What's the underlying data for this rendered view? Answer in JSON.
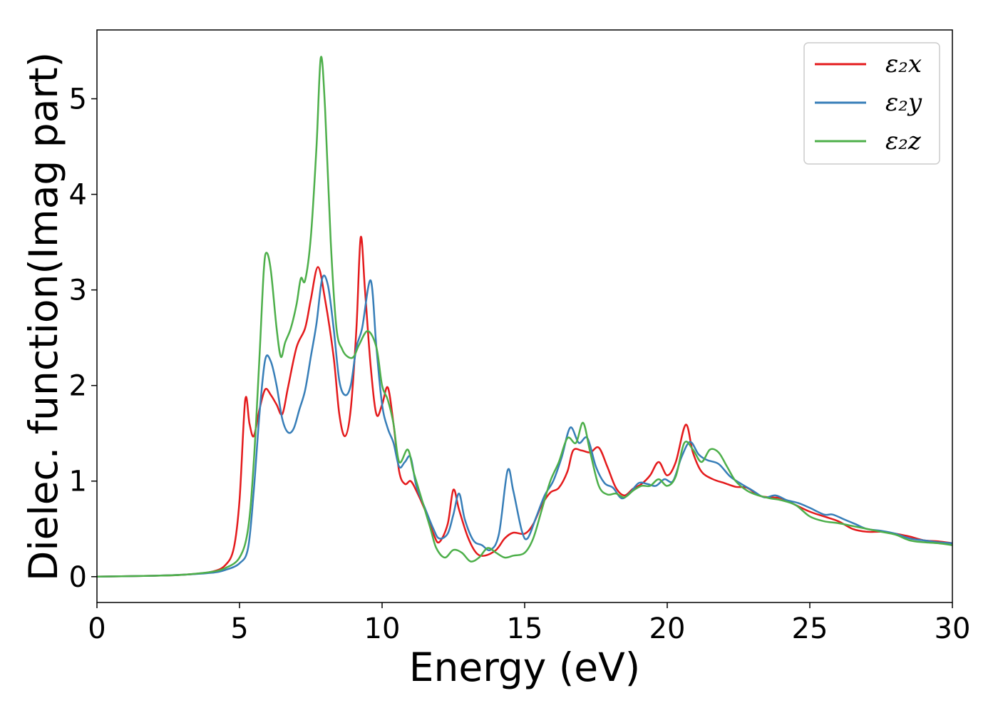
{
  "chart_data": {
    "type": "line",
    "title": "",
    "xlabel": "Energy (eV)",
    "ylabel": "Dielec. function(Imag part)",
    "xlim": [
      0,
      30
    ],
    "ylim": [
      -0.27,
      5.72
    ],
    "xticks": [
      0,
      5,
      10,
      15,
      20,
      25,
      30
    ],
    "yticks": [
      0,
      1,
      2,
      3,
      4,
      5
    ],
    "grid": false,
    "legend_position": "top-right",
    "series": [
      {
        "name": "ε₂x",
        "color": "#e41a1c",
        "points": [
          [
            0,
            0.0
          ],
          [
            2,
            0.01
          ],
          [
            3,
            0.02
          ],
          [
            4,
            0.05
          ],
          [
            4.5,
            0.12
          ],
          [
            4.8,
            0.3
          ],
          [
            5.0,
            0.8
          ],
          [
            5.2,
            1.85
          ],
          [
            5.35,
            1.6
          ],
          [
            5.5,
            1.47
          ],
          [
            5.7,
            1.75
          ],
          [
            5.9,
            1.96
          ],
          [
            6.1,
            1.9
          ],
          [
            6.3,
            1.8
          ],
          [
            6.5,
            1.7
          ],
          [
            6.7,
            1.98
          ],
          [
            7.0,
            2.4
          ],
          [
            7.3,
            2.6
          ],
          [
            7.5,
            2.9
          ],
          [
            7.75,
            3.24
          ],
          [
            8.0,
            2.9
          ],
          [
            8.3,
            2.3
          ],
          [
            8.5,
            1.7
          ],
          [
            8.7,
            1.47
          ],
          [
            8.9,
            1.75
          ],
          [
            9.1,
            2.6
          ],
          [
            9.25,
            3.55
          ],
          [
            9.4,
            3.0
          ],
          [
            9.6,
            2.2
          ],
          [
            9.8,
            1.7
          ],
          [
            10.0,
            1.8
          ],
          [
            10.2,
            1.98
          ],
          [
            10.4,
            1.6
          ],
          [
            10.6,
            1.1
          ],
          [
            10.8,
            0.97
          ],
          [
            11.0,
            1.0
          ],
          [
            11.2,
            0.9
          ],
          [
            11.5,
            0.7
          ],
          [
            11.8,
            0.45
          ],
          [
            12.0,
            0.36
          ],
          [
            12.3,
            0.55
          ],
          [
            12.5,
            0.91
          ],
          [
            12.7,
            0.7
          ],
          [
            13.0,
            0.42
          ],
          [
            13.3,
            0.25
          ],
          [
            13.6,
            0.22
          ],
          [
            14.0,
            0.28
          ],
          [
            14.3,
            0.4
          ],
          [
            14.6,
            0.46
          ],
          [
            15.0,
            0.45
          ],
          [
            15.3,
            0.55
          ],
          [
            15.6,
            0.75
          ],
          [
            15.9,
            0.88
          ],
          [
            16.2,
            0.93
          ],
          [
            16.5,
            1.1
          ],
          [
            16.7,
            1.32
          ],
          [
            17.0,
            1.32
          ],
          [
            17.3,
            1.3
          ],
          [
            17.6,
            1.35
          ],
          [
            17.9,
            1.15
          ],
          [
            18.2,
            0.93
          ],
          [
            18.5,
            0.85
          ],
          [
            18.8,
            0.92
          ],
          [
            19.1,
            0.97
          ],
          [
            19.4,
            1.06
          ],
          [
            19.7,
            1.2
          ],
          [
            20.0,
            1.06
          ],
          [
            20.3,
            1.2
          ],
          [
            20.65,
            1.59
          ],
          [
            20.9,
            1.3
          ],
          [
            21.2,
            1.1
          ],
          [
            21.6,
            1.02
          ],
          [
            22.0,
            0.98
          ],
          [
            22.4,
            0.94
          ],
          [
            22.8,
            0.93
          ],
          [
            23.2,
            0.85
          ],
          [
            23.6,
            0.83
          ],
          [
            24.0,
            0.82
          ],
          [
            24.5,
            0.75
          ],
          [
            25.0,
            0.68
          ],
          [
            25.5,
            0.63
          ],
          [
            26.0,
            0.58
          ],
          [
            26.5,
            0.5
          ],
          [
            27.0,
            0.47
          ],
          [
            27.5,
            0.47
          ],
          [
            28.0,
            0.45
          ],
          [
            28.5,
            0.42
          ],
          [
            29.0,
            0.38
          ],
          [
            29.5,
            0.37
          ],
          [
            30,
            0.35
          ]
        ]
      },
      {
        "name": "ε₂y",
        "color": "#377eb8",
        "points": [
          [
            0,
            0.0
          ],
          [
            2,
            0.01
          ],
          [
            3,
            0.02
          ],
          [
            4,
            0.04
          ],
          [
            4.5,
            0.07
          ],
          [
            5.0,
            0.14
          ],
          [
            5.3,
            0.3
          ],
          [
            5.5,
            0.9
          ],
          [
            5.7,
            1.7
          ],
          [
            5.9,
            2.27
          ],
          [
            6.1,
            2.25
          ],
          [
            6.3,
            2.0
          ],
          [
            6.5,
            1.65
          ],
          [
            6.7,
            1.51
          ],
          [
            6.9,
            1.55
          ],
          [
            7.1,
            1.75
          ],
          [
            7.3,
            1.95
          ],
          [
            7.5,
            2.3
          ],
          [
            7.7,
            2.65
          ],
          [
            7.9,
            3.12
          ],
          [
            8.1,
            3.05
          ],
          [
            8.3,
            2.6
          ],
          [
            8.5,
            2.05
          ],
          [
            8.7,
            1.9
          ],
          [
            8.9,
            2.0
          ],
          [
            9.1,
            2.4
          ],
          [
            9.3,
            2.6
          ],
          [
            9.6,
            3.1
          ],
          [
            9.8,
            2.4
          ],
          [
            10.0,
            1.8
          ],
          [
            10.2,
            1.55
          ],
          [
            10.4,
            1.4
          ],
          [
            10.6,
            1.15
          ],
          [
            10.8,
            1.2
          ],
          [
            11.0,
            1.25
          ],
          [
            11.2,
            0.95
          ],
          [
            11.5,
            0.72
          ],
          [
            11.8,
            0.5
          ],
          [
            12.0,
            0.4
          ],
          [
            12.3,
            0.45
          ],
          [
            12.5,
            0.65
          ],
          [
            12.7,
            0.87
          ],
          [
            12.9,
            0.6
          ],
          [
            13.2,
            0.38
          ],
          [
            13.5,
            0.33
          ],
          [
            13.8,
            0.28
          ],
          [
            14.1,
            0.45
          ],
          [
            14.4,
            1.11
          ],
          [
            14.6,
            0.9
          ],
          [
            14.9,
            0.48
          ],
          [
            15.1,
            0.4
          ],
          [
            15.4,
            0.62
          ],
          [
            15.7,
            0.85
          ],
          [
            16.0,
            1.0
          ],
          [
            16.3,
            1.25
          ],
          [
            16.6,
            1.56
          ],
          [
            16.9,
            1.4
          ],
          [
            17.2,
            1.45
          ],
          [
            17.5,
            1.15
          ],
          [
            17.8,
            0.98
          ],
          [
            18.1,
            0.93
          ],
          [
            18.4,
            0.82
          ],
          [
            18.7,
            0.88
          ],
          [
            19.0,
            0.98
          ],
          [
            19.3,
            0.97
          ],
          [
            19.6,
            0.95
          ],
          [
            19.9,
            1.02
          ],
          [
            20.2,
            1.0
          ],
          [
            20.5,
            1.25
          ],
          [
            20.8,
            1.41
          ],
          [
            21.1,
            1.28
          ],
          [
            21.4,
            1.22
          ],
          [
            21.8,
            1.18
          ],
          [
            22.2,
            1.05
          ],
          [
            22.6,
            0.97
          ],
          [
            23.0,
            0.9
          ],
          [
            23.4,
            0.83
          ],
          [
            23.8,
            0.85
          ],
          [
            24.2,
            0.8
          ],
          [
            24.6,
            0.77
          ],
          [
            25.0,
            0.72
          ],
          [
            25.5,
            0.65
          ],
          [
            25.8,
            0.65
          ],
          [
            26.2,
            0.6
          ],
          [
            26.6,
            0.55
          ],
          [
            27.0,
            0.5
          ],
          [
            27.5,
            0.48
          ],
          [
            28.0,
            0.45
          ],
          [
            28.5,
            0.4
          ],
          [
            29.0,
            0.38
          ],
          [
            29.5,
            0.36
          ],
          [
            30,
            0.35
          ]
        ]
      },
      {
        "name": "ε₂z",
        "color": "#4daf4a",
        "points": [
          [
            0,
            0.0
          ],
          [
            2,
            0.01
          ],
          [
            3,
            0.02
          ],
          [
            4,
            0.05
          ],
          [
            4.5,
            0.09
          ],
          [
            5.0,
            0.2
          ],
          [
            5.3,
            0.5
          ],
          [
            5.5,
            1.2
          ],
          [
            5.7,
            2.3
          ],
          [
            5.85,
            3.2
          ],
          [
            5.95,
            3.39
          ],
          [
            6.1,
            3.2
          ],
          [
            6.3,
            2.6
          ],
          [
            6.45,
            2.3
          ],
          [
            6.6,
            2.45
          ],
          [
            6.8,
            2.6
          ],
          [
            7.0,
            2.85
          ],
          [
            7.15,
            3.12
          ],
          [
            7.3,
            3.1
          ],
          [
            7.5,
            3.55
          ],
          [
            7.7,
            4.5
          ],
          [
            7.85,
            5.43
          ],
          [
            8.0,
            4.9
          ],
          [
            8.2,
            3.5
          ],
          [
            8.4,
            2.6
          ],
          [
            8.6,
            2.38
          ],
          [
            8.8,
            2.3
          ],
          [
            9.0,
            2.3
          ],
          [
            9.2,
            2.43
          ],
          [
            9.5,
            2.57
          ],
          [
            9.8,
            2.4
          ],
          [
            10.0,
            2.0
          ],
          [
            10.2,
            1.85
          ],
          [
            10.4,
            1.6
          ],
          [
            10.6,
            1.2
          ],
          [
            10.9,
            1.33
          ],
          [
            11.1,
            1.1
          ],
          [
            11.4,
            0.8
          ],
          [
            11.7,
            0.5
          ],
          [
            11.9,
            0.3
          ],
          [
            12.2,
            0.2
          ],
          [
            12.5,
            0.28
          ],
          [
            12.8,
            0.25
          ],
          [
            13.1,
            0.16
          ],
          [
            13.4,
            0.2
          ],
          [
            13.7,
            0.3
          ],
          [
            14.0,
            0.25
          ],
          [
            14.3,
            0.2
          ],
          [
            14.6,
            0.22
          ],
          [
            15.0,
            0.25
          ],
          [
            15.3,
            0.4
          ],
          [
            15.6,
            0.7
          ],
          [
            15.9,
            1.0
          ],
          [
            16.2,
            1.2
          ],
          [
            16.5,
            1.45
          ],
          [
            16.8,
            1.4
          ],
          [
            17.05,
            1.61
          ],
          [
            17.3,
            1.3
          ],
          [
            17.6,
            0.95
          ],
          [
            17.9,
            0.86
          ],
          [
            18.2,
            0.87
          ],
          [
            18.5,
            0.83
          ],
          [
            18.8,
            0.9
          ],
          [
            19.1,
            0.95
          ],
          [
            19.4,
            0.95
          ],
          [
            19.7,
            1.02
          ],
          [
            20.0,
            0.95
          ],
          [
            20.3,
            1.05
          ],
          [
            20.6,
            1.4
          ],
          [
            20.9,
            1.33
          ],
          [
            21.2,
            1.2
          ],
          [
            21.5,
            1.33
          ],
          [
            21.8,
            1.3
          ],
          [
            22.1,
            1.15
          ],
          [
            22.4,
            1.0
          ],
          [
            22.8,
            0.9
          ],
          [
            23.2,
            0.85
          ],
          [
            23.6,
            0.82
          ],
          [
            24.0,
            0.8
          ],
          [
            24.5,
            0.75
          ],
          [
            25.0,
            0.63
          ],
          [
            25.5,
            0.58
          ],
          [
            26.0,
            0.56
          ],
          [
            26.5,
            0.53
          ],
          [
            27.0,
            0.5
          ],
          [
            27.5,
            0.47
          ],
          [
            28.0,
            0.44
          ],
          [
            28.5,
            0.38
          ],
          [
            29.0,
            0.36
          ],
          [
            29.5,
            0.35
          ],
          [
            30,
            0.33
          ]
        ]
      }
    ]
  }
}
